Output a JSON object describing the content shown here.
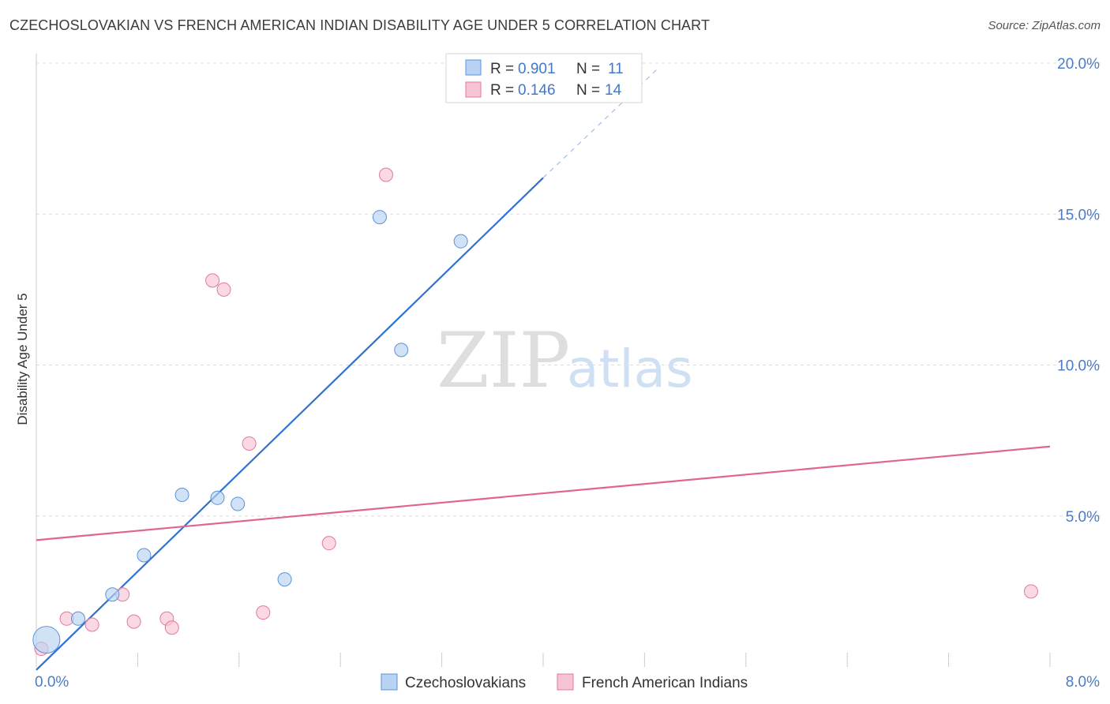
{
  "title": "CZECHOSLOVAKIAN VS FRENCH AMERICAN INDIAN DISABILITY AGE UNDER 5 CORRELATION CHART",
  "source": "Source: ZipAtlas.com",
  "watermark": {
    "zip": "ZIP",
    "atlas": "atlas"
  },
  "legend": {
    "rows": [
      {
        "r_label": "R = ",
        "r_value": "0.901",
        "n_label": "N = ",
        "n_value": "11"
      },
      {
        "r_label": "R = ",
        "r_value": "0.146",
        "n_label": "N = ",
        "n_value": "14"
      }
    ]
  },
  "chart_data": {
    "type": "scatter",
    "title": "CZECHOSLOVAKIAN VS FRENCH AMERICAN INDIAN DISABILITY AGE UNDER 5 CORRELATION CHART",
    "xlabel": "",
    "ylabel": "Disability Age Under 5",
    "xlim": [
      0,
      8
    ],
    "ylim": [
      0,
      20
    ],
    "x_tick_labels": [
      {
        "value": 0,
        "label": "0.0%"
      },
      {
        "value": 8,
        "label": "8.0%"
      }
    ],
    "y_tick_labels": [
      {
        "value": 5,
        "label": "5.0%"
      },
      {
        "value": 10,
        "label": "10.0%"
      },
      {
        "value": 15,
        "label": "15.0%"
      },
      {
        "value": 20,
        "label": "20.0%"
      }
    ],
    "grid": true,
    "legend_position": "top-center",
    "series": [
      {
        "name": "Czechoslovakians",
        "color": "#5b93d9",
        "fill": "#b9d3f2",
        "points": [
          {
            "x": 0.08,
            "y": 0.9,
            "size": "large"
          },
          {
            "x": 0.33,
            "y": 1.6
          },
          {
            "x": 0.6,
            "y": 2.4
          },
          {
            "x": 0.85,
            "y": 3.7
          },
          {
            "x": 1.15,
            "y": 5.7
          },
          {
            "x": 1.43,
            "y": 5.6
          },
          {
            "x": 1.59,
            "y": 5.4
          },
          {
            "x": 1.96,
            "y": 2.9
          },
          {
            "x": 2.71,
            "y": 14.9
          },
          {
            "x": 2.88,
            "y": 10.5
          },
          {
            "x": 3.35,
            "y": 14.1
          }
        ],
        "trend": {
          "x0": 0.0,
          "y0": -0.1,
          "x1": 4.0,
          "y1": 16.2,
          "dash_x1": 4.9,
          "dash_y1": 19.8
        }
      },
      {
        "name": "French American Indians",
        "color": "#e6789c",
        "fill": "#f7c4d4",
        "points": [
          {
            "x": 0.04,
            "y": 0.6
          },
          {
            "x": 0.24,
            "y": 1.6
          },
          {
            "x": 0.44,
            "y": 1.4
          },
          {
            "x": 0.68,
            "y": 2.4
          },
          {
            "x": 0.77,
            "y": 1.5
          },
          {
            "x": 1.03,
            "y": 1.6
          },
          {
            "x": 1.07,
            "y": 1.3
          },
          {
            "x": 1.39,
            "y": 12.8
          },
          {
            "x": 1.48,
            "y": 12.5
          },
          {
            "x": 1.68,
            "y": 7.4
          },
          {
            "x": 1.79,
            "y": 1.8
          },
          {
            "x": 2.31,
            "y": 4.1
          },
          {
            "x": 2.76,
            "y": 16.3
          },
          {
            "x": 7.85,
            "y": 2.5
          }
        ],
        "trend": {
          "x0": 0.0,
          "y0": 4.2,
          "x1": 8.0,
          "y1": 7.3
        }
      }
    ]
  }
}
